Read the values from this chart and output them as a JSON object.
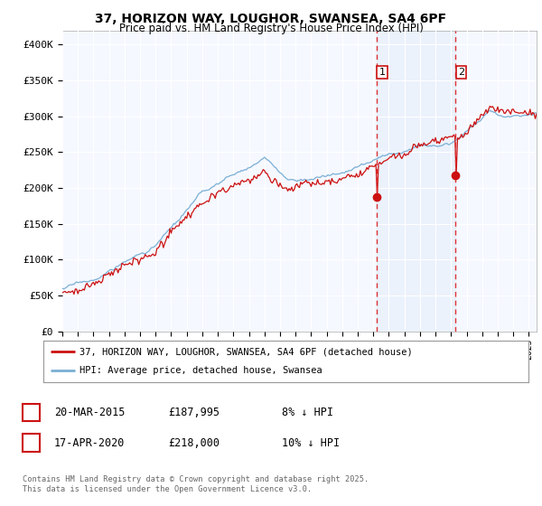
{
  "title_line1": "37, HORIZON WAY, LOUGHOR, SWANSEA, SA4 6PF",
  "title_line2": "Price paid vs. HM Land Registry's House Price Index (HPI)",
  "ylabel_ticks": [
    "£0",
    "£50K",
    "£100K",
    "£150K",
    "£200K",
    "£250K",
    "£300K",
    "£350K",
    "£400K"
  ],
  "ytick_values": [
    0,
    50000,
    100000,
    150000,
    200000,
    250000,
    300000,
    350000,
    400000
  ],
  "ylim": [
    0,
    420000
  ],
  "xlim_start": 1995.0,
  "xlim_end": 2025.5,
  "hpi_color": "#7aafd4",
  "price_color": "#cc1111",
  "vline1_x": 2015.22,
  "vline2_x": 2020.3,
  "vline_color": "#dd3333",
  "shade_alpha": 0.12,
  "shade_color": "#aaccee",
  "marker1_x": 2015.22,
  "marker1_y": 187995,
  "marker2_x": 2020.3,
  "marker2_y": 218000,
  "annotation1": "1",
  "annotation2": "2",
  "legend_price_label": "37, HORIZON WAY, LOUGHOR, SWANSEA, SA4 6PF (detached house)",
  "legend_hpi_label": "HPI: Average price, detached house, Swansea",
  "note1_date": "20-MAR-2015",
  "note1_price": "£187,995",
  "note1_hpi": "8% ↓ HPI",
  "note2_date": "17-APR-2020",
  "note2_price": "£218,000",
  "note2_hpi": "10% ↓ HPI",
  "footer": "Contains HM Land Registry data © Crown copyright and database right 2025.\nThis data is licensed under the Open Government Licence v3.0.",
  "background_color": "#ffffff",
  "plot_bg_color": "#f5f8ff"
}
